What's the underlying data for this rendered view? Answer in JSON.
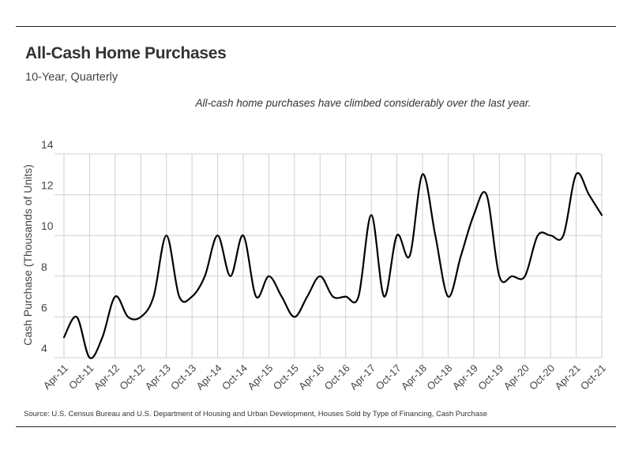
{
  "header": {
    "title": "All-Cash Home Purchases",
    "subtitle": "10-Year, Quarterly"
  },
  "annotation": "All-cash home purchases have climbed considerably over the last year.",
  "source": "Source:  U.S. Census Bureau and U.S. Department of Housing and Urban Development, Houses Sold by Type of Financing, Cash Purchase",
  "chart_data": {
    "type": "line",
    "title": "All-Cash Home Purchases",
    "subtitle": "10-Year, Quarterly",
    "xlabel": "",
    "ylabel": "Cash Purchase (Thousands of Units)",
    "ylim": [
      4,
      14
    ],
    "yticks": [
      4,
      6,
      8,
      10,
      12,
      14
    ],
    "grid": true,
    "legend": "none",
    "line_color": "#000000",
    "x": [
      "Apr-11",
      "Jul-11",
      "Oct-11",
      "Jan-12",
      "Apr-12",
      "Jul-12",
      "Oct-12",
      "Jan-13",
      "Apr-13",
      "Jul-13",
      "Oct-13",
      "Jan-14",
      "Apr-14",
      "Jul-14",
      "Oct-14",
      "Jan-15",
      "Apr-15",
      "Jul-15",
      "Oct-15",
      "Jan-16",
      "Apr-16",
      "Jul-16",
      "Oct-16",
      "Jan-17",
      "Apr-17",
      "Jul-17",
      "Oct-17",
      "Jan-18",
      "Apr-18",
      "Jul-18",
      "Oct-18",
      "Jan-19",
      "Apr-19",
      "Jul-19",
      "Oct-19",
      "Jan-20",
      "Apr-20",
      "Jul-20",
      "Oct-20",
      "Jan-21",
      "Apr-21",
      "Jul-21",
      "Oct-21"
    ],
    "x_tick_labels": [
      "Apr-11",
      "Oct-11",
      "Apr-12",
      "Oct-12",
      "Apr-13",
      "Oct-13",
      "Apr-14",
      "Oct-14",
      "Apr-15",
      "Oct-15",
      "Apr-16",
      "Oct-16",
      "Apr-17",
      "Oct-17",
      "Apr-18",
      "Oct-18",
      "Apr-19",
      "Oct-19",
      "Apr-20",
      "Oct-20",
      "Apr-21",
      "Oct-21"
    ],
    "series": [
      {
        "values": [
          5,
          6,
          4,
          5,
          7,
          6,
          6,
          7,
          10,
          7,
          7,
          8,
          10,
          8,
          10,
          7,
          8,
          7,
          6,
          7,
          8,
          7,
          7,
          7,
          11,
          7,
          10,
          9,
          13,
          10,
          7,
          9,
          11,
          12,
          8,
          8,
          8,
          10,
          10,
          10,
          13,
          12,
          11
        ]
      }
    ]
  }
}
